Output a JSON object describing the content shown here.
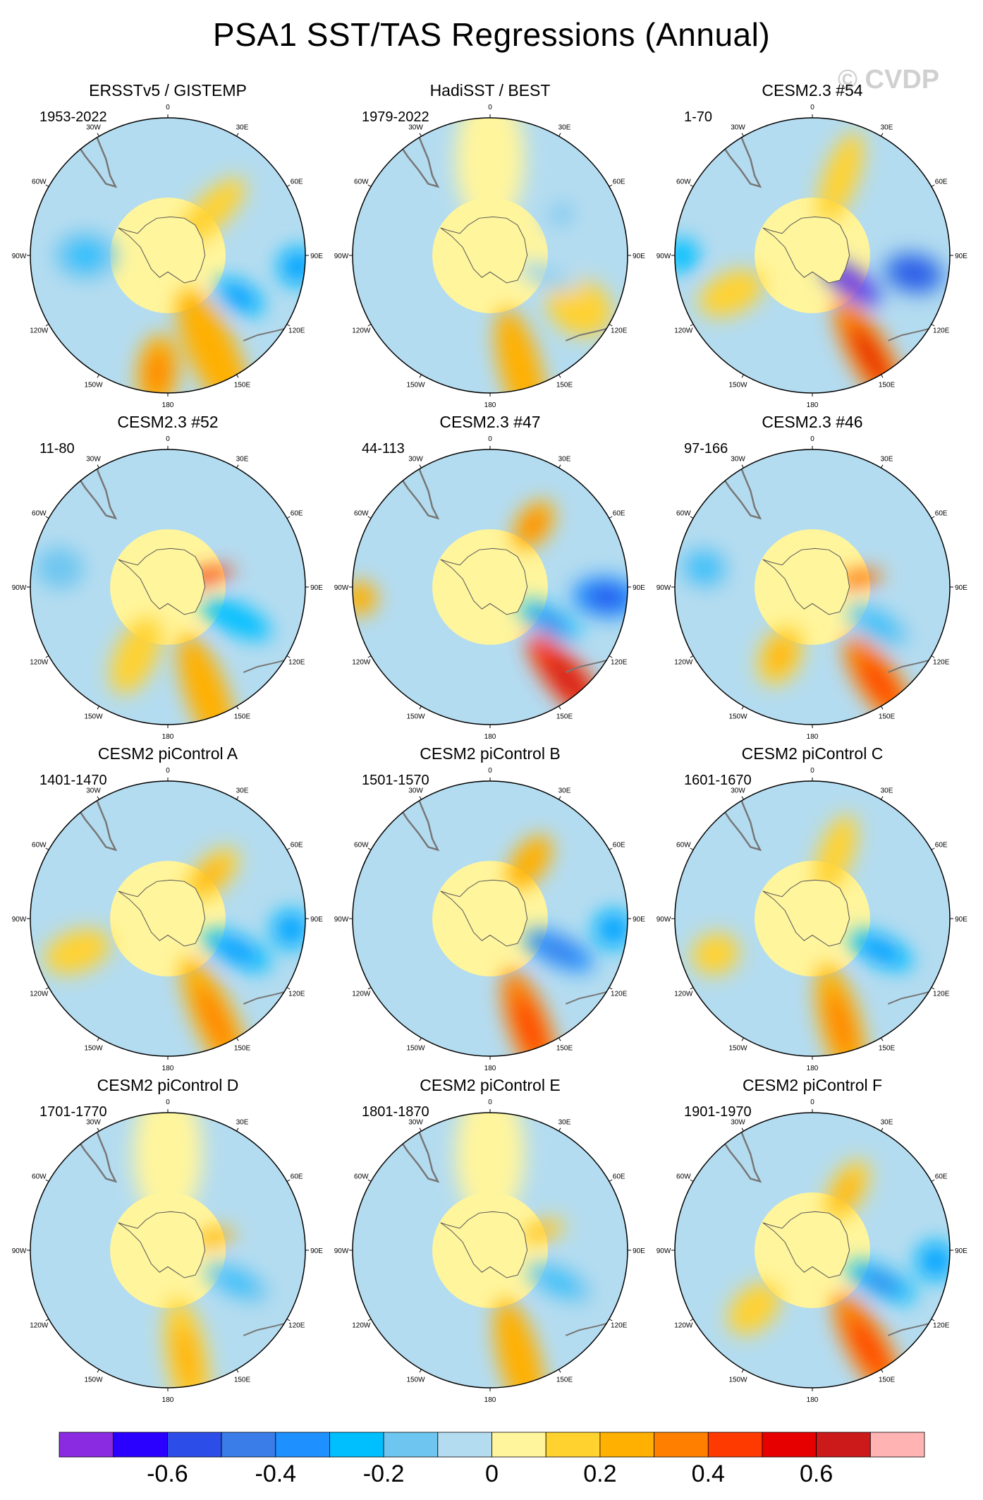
{
  "title": "PSA1 SST/TAS Regressions (Annual)",
  "watermark": "© CVDP",
  "chart_data": {
    "type": "polar-contour-map",
    "projection": "south-polar-stereographic",
    "longitude_labels": [
      "0",
      "30E",
      "60E",
      "90E",
      "120E",
      "150E",
      "180",
      "150W",
      "120W",
      "90W",
      "60W",
      "30W"
    ],
    "panels": [
      {
        "title": "ERSSTv5 / GISTEMP",
        "period": "1953-2022",
        "fields": [
          {
            "lon": 155,
            "r": 0.78,
            "v": 0.22,
            "w": 1.0,
            "h": 0.35,
            "rot": 0
          },
          {
            "lon": 185,
            "r": 0.85,
            "v": 0.24,
            "w": 0.55,
            "h": 0.3,
            "rot": 0
          },
          {
            "lon": 120,
            "r": 0.6,
            "v": -0.28,
            "w": 0.4,
            "h": 0.22,
            "rot": 0
          },
          {
            "lon": 95,
            "r": 0.95,
            "v": -0.24,
            "w": 0.3,
            "h": 0.3,
            "rot": 0
          },
          {
            "lon": 45,
            "r": 0.45,
            "v": 0.1,
            "w": 0.65,
            "h": 0.25,
            "rot": 0
          },
          {
            "lon": 270,
            "r": 0.6,
            "v": -0.18,
            "w": 0.45,
            "h": 0.35,
            "rot": 0
          }
        ]
      },
      {
        "title": "HadiSST / BEST",
        "period": "1979-2022",
        "fields": [
          {
            "lon": 165,
            "r": 0.85,
            "v": 0.2,
            "w": 0.9,
            "h": 0.3,
            "rot": 0
          },
          {
            "lon": 120,
            "r": 0.75,
            "v": 0.12,
            "w": 0.5,
            "h": 0.4,
            "rot": 0
          },
          {
            "lon": 110,
            "r": 0.45,
            "v": -0.1,
            "w": 0.5,
            "h": 0.15,
            "rot": 0
          },
          {
            "lon": 60,
            "r": 0.6,
            "v": -0.08,
            "w": 0.3,
            "h": 0.3,
            "rot": 0
          },
          {
            "lon": 0,
            "r": 0.7,
            "v": 0.06,
            "w": 1.0,
            "h": 0.5,
            "rot": 0
          }
        ]
      },
      {
        "title": "CESM2.3 #54",
        "period": "1-70",
        "fields": [
          {
            "lon": 150,
            "r": 0.85,
            "v": 0.38,
            "w": 0.95,
            "h": 0.3,
            "rot": 0
          },
          {
            "lon": 125,
            "r": 0.35,
            "v": -0.55,
            "w": 0.5,
            "h": 0.2,
            "rot": 0
          },
          {
            "lon": 100,
            "r": 0.75,
            "v": -0.42,
            "w": 0.45,
            "h": 0.3,
            "rot": 0
          },
          {
            "lon": 20,
            "r": 0.6,
            "v": 0.1,
            "w": 0.7,
            "h": 0.25,
            "rot": 0
          },
          {
            "lon": 245,
            "r": 0.65,
            "v": 0.14,
            "w": 0.5,
            "h": 0.3,
            "rot": 0
          },
          {
            "lon": 270,
            "r": 0.95,
            "v": -0.22,
            "w": 0.25,
            "h": 0.25,
            "rot": 0
          }
        ]
      },
      {
        "title": "CESM2.3 #52",
        "period": "11-80",
        "fields": [
          {
            "lon": 160,
            "r": 0.82,
            "v": 0.22,
            "w": 0.9,
            "h": 0.3,
            "rot": 0
          },
          {
            "lon": 75,
            "r": 0.3,
            "v": 0.42,
            "w": 0.4,
            "h": 0.1,
            "rot": 0
          },
          {
            "lon": 115,
            "r": 0.55,
            "v": -0.22,
            "w": 0.55,
            "h": 0.22,
            "rot": 0
          },
          {
            "lon": 205,
            "r": 0.55,
            "v": 0.14,
            "w": 0.6,
            "h": 0.3,
            "rot": 0
          },
          {
            "lon": 280,
            "r": 0.8,
            "v": -0.12,
            "w": 0.35,
            "h": 0.3,
            "rot": 0
          }
        ]
      },
      {
        "title": "CESM2.3 #47",
        "period": "44-113",
        "fields": [
          {
            "lon": 140,
            "r": 0.88,
            "v": 0.46,
            "w": 0.85,
            "h": 0.28,
            "rot": 0
          },
          {
            "lon": 95,
            "r": 0.85,
            "v": -0.38,
            "w": 0.5,
            "h": 0.3,
            "rot": 0
          },
          {
            "lon": 120,
            "r": 0.5,
            "v": -0.3,
            "w": 0.5,
            "h": 0.2,
            "rot": 0
          },
          {
            "lon": 35,
            "r": 0.55,
            "v": 0.24,
            "w": 0.4,
            "h": 0.25,
            "rot": 0
          },
          {
            "lon": 265,
            "r": 0.95,
            "v": 0.2,
            "w": 0.25,
            "h": 0.25,
            "rot": 0
          }
        ]
      },
      {
        "title": "CESM2.3 #46",
        "period": "97-166",
        "fields": [
          {
            "lon": 145,
            "r": 0.85,
            "v": 0.34,
            "w": 0.8,
            "h": 0.3,
            "rot": 0
          },
          {
            "lon": 80,
            "r": 0.35,
            "v": 0.3,
            "w": 0.35,
            "h": 0.12,
            "rot": 0
          },
          {
            "lon": 120,
            "r": 0.55,
            "v": -0.2,
            "w": 0.5,
            "h": 0.22,
            "rot": 0
          },
          {
            "lon": 205,
            "r": 0.55,
            "v": 0.16,
            "w": 0.45,
            "h": 0.3,
            "rot": 0
          },
          {
            "lon": 280,
            "r": 0.8,
            "v": -0.15,
            "w": 0.35,
            "h": 0.3,
            "rot": 0
          }
        ]
      },
      {
        "title": "CESM2 piControl A",
        "period": "1401-1470",
        "fields": [
          {
            "lon": 155,
            "r": 0.82,
            "v": 0.24,
            "w": 1.0,
            "h": 0.3,
            "rot": 0
          },
          {
            "lon": 115,
            "r": 0.55,
            "v": -0.28,
            "w": 0.55,
            "h": 0.22,
            "rot": 0
          },
          {
            "lon": 95,
            "r": 0.9,
            "v": -0.25,
            "w": 0.3,
            "h": 0.3,
            "rot": 0
          },
          {
            "lon": 45,
            "r": 0.45,
            "v": 0.16,
            "w": 0.5,
            "h": 0.25,
            "rot": 0
          },
          {
            "lon": 250,
            "r": 0.7,
            "v": 0.1,
            "w": 0.5,
            "h": 0.3,
            "rot": 0
          }
        ]
      },
      {
        "title": "CESM2 piControl B",
        "period": "1501-1570",
        "fields": [
          {
            "lon": 160,
            "r": 0.85,
            "v": 0.34,
            "w": 0.9,
            "h": 0.3,
            "rot": 0
          },
          {
            "lon": 115,
            "r": 0.55,
            "v": -0.32,
            "w": 0.55,
            "h": 0.22,
            "rot": 0
          },
          {
            "lon": 95,
            "r": 0.9,
            "v": -0.26,
            "w": 0.3,
            "h": 0.3,
            "rot": 0
          },
          {
            "lon": 35,
            "r": 0.5,
            "v": 0.22,
            "w": 0.45,
            "h": 0.25,
            "rot": 0
          }
        ]
      },
      {
        "title": "CESM2 piControl C",
        "period": "1601-1670",
        "fields": [
          {
            "lon": 165,
            "r": 0.8,
            "v": 0.24,
            "w": 0.9,
            "h": 0.3,
            "rot": 0
          },
          {
            "lon": 115,
            "r": 0.55,
            "v": -0.24,
            "w": 0.5,
            "h": 0.22,
            "rot": 0
          },
          {
            "lon": 20,
            "r": 0.5,
            "v": 0.14,
            "w": 0.6,
            "h": 0.25,
            "rot": 0
          },
          {
            "lon": 250,
            "r": 0.75,
            "v": 0.14,
            "w": 0.35,
            "h": 0.3,
            "rot": 0
          }
        ]
      },
      {
        "title": "CESM2 piControl D",
        "period": "1701-1770",
        "fields": [
          {
            "lon": 170,
            "r": 0.8,
            "v": 0.18,
            "w": 0.9,
            "h": 0.3,
            "rot": 0
          },
          {
            "lon": 115,
            "r": 0.55,
            "v": -0.2,
            "w": 0.5,
            "h": 0.22,
            "rot": 0
          },
          {
            "lon": 75,
            "r": 0.35,
            "v": 0.22,
            "w": 0.3,
            "h": 0.12,
            "rot": 0
          },
          {
            "lon": 0,
            "r": 0.7,
            "v": 0.06,
            "w": 1.0,
            "h": 0.5,
            "rot": 0
          }
        ]
      },
      {
        "title": "CESM2 piControl E",
        "period": "1801-1870",
        "fields": [
          {
            "lon": 165,
            "r": 0.82,
            "v": 0.2,
            "w": 0.9,
            "h": 0.3,
            "rot": 0
          },
          {
            "lon": 115,
            "r": 0.55,
            "v": -0.2,
            "w": 0.5,
            "h": 0.22,
            "rot": 0
          },
          {
            "lon": 70,
            "r": 0.4,
            "v": 0.16,
            "w": 0.35,
            "h": 0.15,
            "rot": 0
          },
          {
            "lon": 0,
            "r": 0.7,
            "v": 0.06,
            "w": 1.0,
            "h": 0.5,
            "rot": 0
          }
        ]
      },
      {
        "title": "CESM2 piControl F",
        "period": "1901-1970",
        "fields": [
          {
            "lon": 150,
            "r": 0.82,
            "v": 0.3,
            "w": 0.9,
            "h": 0.3,
            "rot": 0
          },
          {
            "lon": 115,
            "r": 0.55,
            "v": -0.3,
            "w": 0.55,
            "h": 0.22,
            "rot": 0
          },
          {
            "lon": 95,
            "r": 0.9,
            "v": -0.24,
            "w": 0.3,
            "h": 0.3,
            "rot": 0
          },
          {
            "lon": 30,
            "r": 0.5,
            "v": 0.16,
            "w": 0.5,
            "h": 0.25,
            "rot": 0
          },
          {
            "lon": 225,
            "r": 0.6,
            "v": 0.12,
            "w": 0.45,
            "h": 0.3,
            "rot": 0
          }
        ]
      }
    ],
    "colorbar": {
      "levels": [
        -0.7,
        -0.6,
        -0.5,
        -0.4,
        -0.3,
        -0.2,
        -0.1,
        0,
        0.1,
        0.2,
        0.3,
        0.4,
        0.5,
        0.6,
        0.7
      ],
      "colors": [
        "#8a2be2",
        "#2a00ff",
        "#2d4de8",
        "#3b7de8",
        "#1e90ff",
        "#00bfff",
        "#6ec6f0",
        "#b4dcf0",
        "#fff59d",
        "#ffd230",
        "#ffb000",
        "#ff8000",
        "#ff3a00",
        "#e60000",
        "#cc1a1a",
        "#ffb3b3"
      ],
      "tick_labels": [
        "-0.6",
        "-0.4",
        "-0.2",
        "0",
        "0.2",
        "0.4",
        "0.6"
      ]
    }
  }
}
